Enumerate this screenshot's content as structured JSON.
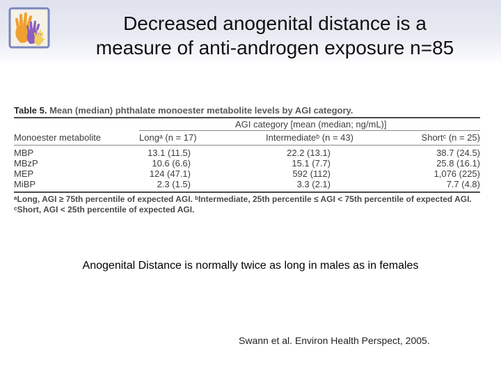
{
  "slide": {
    "title_lines": [
      "Decreased anogenital distance is a",
      "measure of anti-androgen exposure n=85"
    ]
  },
  "table": {
    "caption_label": "Table 5.",
    "caption_text": "Mean (median) phthalate monoester metabolite levels by AGI category.",
    "group_header": "AGI category [mean (median; ng/mL)]",
    "columns": [
      "Monoester metabolite",
      "Longᵃ (n = 17)",
      "Intermediateᵇ (n = 43)",
      "Shortᶜ (n = 25)"
    ],
    "rows": [
      [
        "MBP",
        "13.1 (11.5)",
        "22.2 (13.1)",
        "38.7 (24.5)"
      ],
      [
        "MBzP",
        "10.6 (6.6)",
        "15.1 (7.7)",
        "25.8 (16.1)"
      ],
      [
        "MEP",
        "124 (47.1)",
        "592 (112)",
        "1,076 (225)"
      ],
      [
        "MiBP",
        "2.3 (1.5)",
        "3.3 (2.1)",
        "7.7 (4.8)"
      ]
    ],
    "footnotes": [
      "ᵃLong, AGI ≥ 75th percentile of expected AGI. ᵇIntermediate, 25th percentile ≤ AGI < 75th percentile of expected AGI.",
      "ᶜShort, AGI < 25th percentile of expected AGI."
    ]
  },
  "note": "Anogenital Distance is normally twice as long in males as in females",
  "citation": "Swann et al. Environ Health Perspect, 2005.",
  "logo": {
    "icon": "hands-icon",
    "colors": {
      "border": "#7a86c0",
      "orange": "#f0a030",
      "purple": "#8c5fc0",
      "yellow": "#f2d060"
    }
  },
  "colors": {
    "band": "#e3e5ef"
  }
}
